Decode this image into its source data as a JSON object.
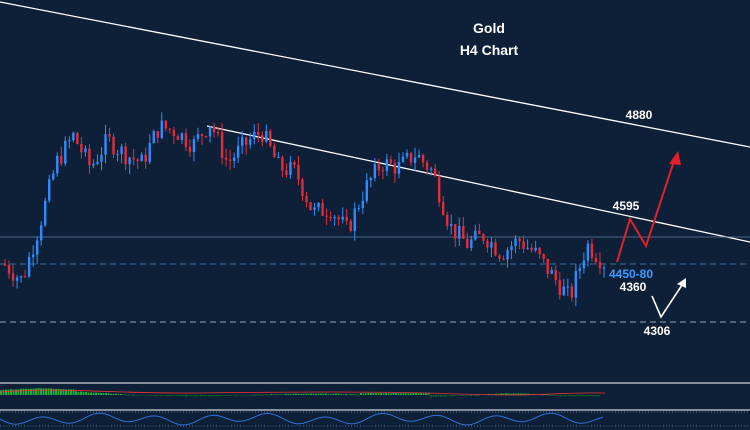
{
  "chart_data": {
    "type": "line",
    "title": "Gold",
    "subtitle": "H4 Chart",
    "ylim": [
      4220,
      5060
    ],
    "price_path": [
      4475,
      4440,
      4560,
      4700,
      4760,
      4690,
      4750,
      4720,
      4700,
      4780,
      4770,
      4740,
      4790,
      4700,
      4740,
      4770,
      4690,
      4680,
      4590,
      4600,
      4550,
      4640,
      4700,
      4690,
      4720,
      4680,
      4560,
      4520,
      4540,
      4500,
      4530,
      4500,
      4450,
      4400,
      4520,
      4480
    ],
    "levels": [
      {
        "label": "4880",
        "value": 4880
      },
      {
        "label": "4595",
        "value": 4595
      },
      {
        "label": "4450-80",
        "value": 4465
      },
      {
        "label": "4360",
        "value": 4360
      },
      {
        "label": "4306",
        "value": 4306
      }
    ],
    "projections": [
      {
        "direction": "up",
        "color": "#e0202a"
      },
      {
        "direction": "up",
        "color": "#ffffff"
      }
    ]
  }
}
